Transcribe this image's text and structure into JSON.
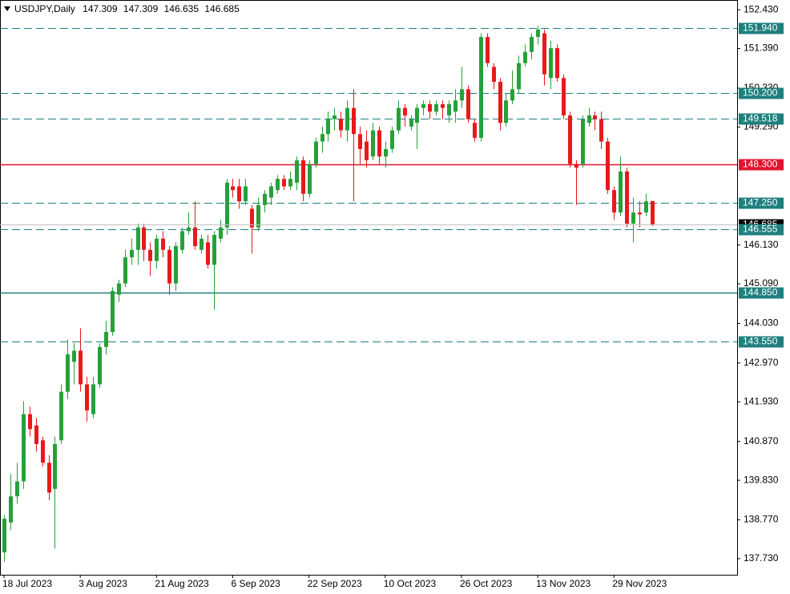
{
  "chart_data": {
    "type": "candlestick",
    "symbol": "USDJPY,Daily",
    "categories": [
      "18 Jul 2023",
      null,
      null,
      null,
      null,
      null,
      null,
      null,
      null,
      null,
      null,
      null,
      "3 Aug 2023",
      null,
      null,
      null,
      null,
      null,
      null,
      null,
      null,
      null,
      null,
      null,
      "21 Aug 2023",
      null,
      null,
      null,
      null,
      null,
      null,
      null,
      null,
      null,
      null,
      null,
      "6 Sep 2023",
      null,
      null,
      null,
      null,
      null,
      null,
      null,
      null,
      null,
      null,
      null,
      "22 Sep 2023",
      null,
      null,
      null,
      null,
      null,
      null,
      null,
      null,
      null,
      null,
      null,
      "10 Oct 2023",
      null,
      null,
      null,
      null,
      null,
      null,
      null,
      null,
      null,
      null,
      null,
      "26 Oct 2023",
      null,
      null,
      null,
      null,
      null,
      null,
      null,
      null,
      null,
      null,
      null,
      "13 Nov 2023",
      null,
      null,
      null,
      null,
      null,
      null,
      null,
      null,
      null,
      null,
      null,
      "29 Nov 2023",
      null,
      null,
      null,
      null,
      null,
      null
    ],
    "open": [
      137.9,
      138.7,
      139.4,
      139.8,
      141.6,
      141.3,
      140.9,
      140.3,
      139.6,
      140.9,
      142.2,
      143.0,
      143.3,
      142.4,
      141.6,
      142.4,
      143.4,
      143.8,
      144.8,
      145.1,
      145.8,
      146.0,
      146.6,
      146.0,
      145.7,
      146.3,
      146.0,
      145.1,
      146.0,
      146.5,
      146.6,
      146.0,
      146.2,
      145.6,
      146.3,
      146.6,
      147.7,
      147.7,
      147.3,
      147.1,
      146.6,
      147.2,
      147.4,
      147.6,
      147.9,
      147.7,
      147.8,
      148.4,
      147.5,
      148.3,
      148.9,
      149.1,
      149.5,
      149.5,
      149.2,
      149.8,
      149.1,
      148.9,
      148.5,
      149.2,
      148.5,
      148.7,
      149.2,
      149.8,
      149.3,
      149.4,
      149.8,
      149.9,
      149.7,
      149.9,
      149.6,
      149.7,
      150.0,
      150.3,
      149.4,
      149.0,
      151.7,
      150.9,
      150.5,
      149.4,
      150.0,
      150.3,
      151.0,
      151.3,
      151.7,
      151.8,
      150.6,
      151.4,
      150.6,
      149.6,
      148.3,
      148.3,
      149.4,
      149.6,
      149.5,
      148.9,
      147.6,
      147.0,
      148.1,
      146.7,
      147.0,
      147.0,
      147.309
    ],
    "high": [
      138.9,
      140.0,
      140.3,
      141.95,
      141.8,
      141.5,
      141.0,
      140.5,
      141.0,
      142.4,
      143.6,
      143.5,
      143.9,
      142.6,
      142.6,
      143.5,
      144.1,
      145.0,
      145.2,
      146.0,
      146.3,
      146.7,
      146.7,
      146.2,
      146.4,
      146.5,
      146.1,
      146.2,
      146.6,
      147.0,
      147.3,
      146.4,
      146.4,
      146.5,
      146.8,
      147.9,
      147.9,
      147.9,
      147.9,
      147.2,
      147.4,
      147.6,
      147.8,
      148.0,
      148.0,
      148.1,
      148.5,
      148.5,
      148.4,
      149.0,
      149.3,
      149.7,
      149.8,
      149.7,
      150.0,
      150.3,
      149.3,
      149.2,
      149.4,
      149.3,
      148.9,
      149.3,
      150.0,
      149.9,
      149.6,
      149.9,
      150.0,
      150.0,
      150.0,
      150.0,
      150.0,
      150.3,
      150.9,
      150.4,
      149.5,
      151.8,
      151.8,
      151.0,
      150.6,
      150.2,
      150.8,
      151.2,
      151.5,
      151.8,
      152.0,
      151.9,
      151.6,
      151.5,
      150.7,
      149.7,
      148.4,
      149.6,
      149.8,
      149.7,
      149.7,
      149.0,
      147.7,
      148.5,
      148.2,
      147.4,
      147.3,
      147.5,
      147.309
    ],
    "low": [
      137.65,
      138.5,
      139.2,
      139.6,
      141.0,
      140.6,
      140.2,
      139.3,
      138.0,
      140.8,
      142.0,
      142.4,
      142.2,
      141.4,
      141.5,
      142.3,
      143.2,
      143.7,
      144.6,
      145.0,
      145.6,
      145.6,
      145.7,
      145.3,
      145.5,
      145.8,
      144.8,
      144.9,
      145.9,
      146.4,
      146.0,
      145.9,
      145.5,
      144.4,
      146.2,
      146.4,
      147.4,
      147.1,
      147.2,
      145.9,
      146.5,
      147.0,
      147.2,
      147.5,
      147.6,
      147.6,
      147.6,
      147.3,
      147.4,
      148.2,
      148.6,
      148.9,
      149.2,
      149.0,
      148.9,
      147.3,
      148.3,
      148.2,
      148.4,
      148.3,
      148.2,
      148.6,
      149.1,
      149.3,
      149.2,
      148.7,
      149.6,
      149.5,
      149.6,
      149.5,
      149.4,
      149.4,
      149.8,
      149.4,
      148.9,
      148.9,
      150.9,
      150.3,
      149.2,
      149.3,
      149.9,
      150.2,
      150.9,
      151.1,
      151.5,
      150.4,
      150.3,
      150.5,
      149.5,
      148.2,
      147.2,
      148.2,
      149.3,
      149.2,
      148.7,
      147.5,
      146.8,
      146.9,
      146.6,
      146.2,
      146.6,
      146.9,
      146.635
    ],
    "close": [
      138.8,
      139.4,
      139.8,
      141.6,
      141.2,
      140.8,
      140.3,
      139.5,
      140.8,
      142.2,
      143.2,
      143.3,
      142.4,
      141.7,
      142.4,
      143.4,
      143.8,
      144.9,
      145.1,
      145.8,
      146.0,
      146.6,
      146.0,
      145.7,
      146.3,
      146.0,
      145.1,
      146.1,
      146.5,
      146.6,
      146.1,
      146.3,
      145.6,
      146.4,
      146.6,
      147.8,
      147.6,
      147.3,
      147.7,
      146.6,
      147.2,
      147.5,
      147.7,
      147.9,
      147.7,
      147.9,
      148.4,
      147.5,
      148.3,
      148.9,
      149.1,
      149.5,
      149.6,
      149.2,
      149.8,
      149.1,
      148.7,
      148.4,
      149.2,
      148.5,
      148.7,
      149.2,
      149.8,
      149.6,
      149.5,
      149.8,
      149.9,
      149.7,
      149.9,
      149.8,
      149.9,
      150.0,
      150.3,
      149.5,
      149.0,
      151.7,
      151.0,
      150.5,
      149.4,
      150.0,
      150.3,
      151.0,
      151.3,
      151.7,
      151.9,
      150.7,
      151.4,
      150.6,
      149.6,
      148.3,
      148.2,
      149.5,
      149.6,
      149.5,
      148.9,
      147.6,
      147.0,
      148.1,
      146.7,
      147.0,
      146.95,
      147.3,
      146.685
    ],
    "up_color": "#26a03a",
    "down_color": "#e8191c",
    "ylim": [
      137.3,
      152.69
    ],
    "yticks": [
      {
        "value": 152.43,
        "label": "152.430"
      },
      {
        "value": 151.39,
        "label": "151.390"
      },
      {
        "value": 150.33,
        "label": "150.330"
      },
      {
        "value": 149.29,
        "label": "149.290"
      },
      {
        "value": 146.13,
        "label": "146.130"
      },
      {
        "value": 145.09,
        "label": "145.090"
      },
      {
        "value": 144.03,
        "label": "144.030"
      },
      {
        "value": 142.97,
        "label": "142.970"
      },
      {
        "value": 141.93,
        "label": "141.930"
      },
      {
        "value": 140.87,
        "label": "140.870"
      },
      {
        "value": 139.83,
        "label": "139.830"
      },
      {
        "value": 138.77,
        "label": "138.770"
      },
      {
        "value": 137.73,
        "label": "137.730"
      }
    ],
    "levels": [
      {
        "value": 151.94,
        "label": "151.940",
        "style": "dashed",
        "color": "#1f7f7f"
      },
      {
        "value": 150.2,
        "label": "150.200",
        "style": "dashed",
        "color": "#1f7f7f"
      },
      {
        "value": 149.518,
        "label": "149.518",
        "style": "dashed",
        "color": "#1f7f7f"
      },
      {
        "value": 148.3,
        "label": "148.300",
        "style": "solid",
        "color": "#e0142f"
      },
      {
        "value": 147.25,
        "label": "147.250",
        "style": "dashed",
        "color": "#1f7f7f"
      },
      {
        "value": 146.555,
        "label": "146.555",
        "style": "dashed",
        "color": "#1f7f7f"
      },
      {
        "value": 144.85,
        "label": "144.850",
        "style": "solid",
        "color": "#1f7f7f"
      },
      {
        "value": 143.55,
        "label": "143.550",
        "style": "dashed",
        "color": "#1f7f7f"
      }
    ]
  }
}
